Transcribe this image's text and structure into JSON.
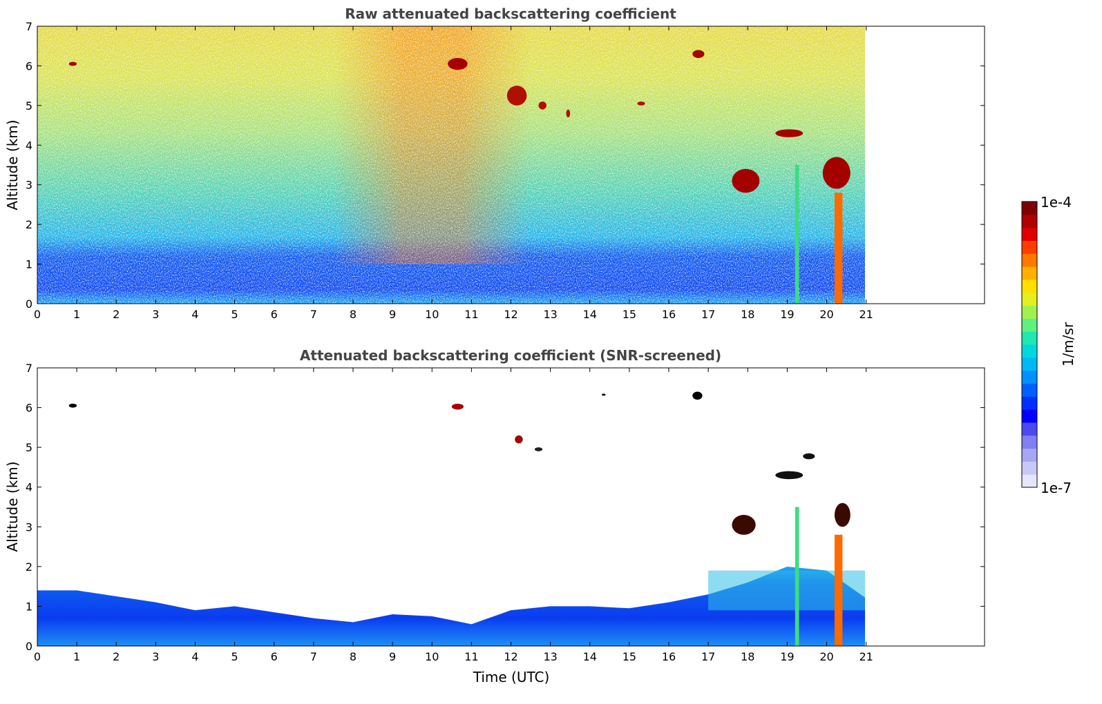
{
  "chart_data": [
    {
      "type": "heatmap",
      "title": "Raw attenuated backscattering coefficient",
      "xlabel": "",
      "ylabel": "Altitude (km)",
      "xlim": [
        0,
        24
      ],
      "ylim": [
        0,
        7
      ],
      "data_extent_x": [
        0,
        21
      ],
      "x_ticks": [
        0,
        1,
        2,
        3,
        4,
        5,
        6,
        7,
        8,
        9,
        10,
        11,
        12,
        13,
        14,
        15,
        16,
        17,
        18,
        19,
        20,
        21
      ],
      "y_ticks": [
        0,
        1,
        2,
        3,
        4,
        5,
        6,
        7
      ],
      "background_bands": [
        {
          "y": [
            0,
            0.35
          ],
          "color": "#1ba7f0"
        },
        {
          "y": [
            0.35,
            1.2
          ],
          "color": "#0a45f2"
        },
        {
          "y": [
            1.2,
            2.6
          ],
          "color": "#1fb2e8"
        },
        {
          "y": [
            2.6,
            4.4
          ],
          "color": "#4fd0b4"
        },
        {
          "y": [
            4.4,
            7.0
          ],
          "color": "#d9e24e"
        }
      ],
      "features": [
        {
          "label": "cloud",
          "x": [
            0.8,
            1.0
          ],
          "y": [
            6.0,
            6.1
          ],
          "color": "#a50000"
        },
        {
          "label": "cloud",
          "x": [
            10.4,
            10.9
          ],
          "y": [
            5.9,
            6.2
          ],
          "color": "#a50000"
        },
        {
          "label": "cloud",
          "x": [
            11.9,
            12.4
          ],
          "y": [
            5.0,
            5.5
          ],
          "color": "#b01000"
        },
        {
          "label": "cloud",
          "x": [
            12.7,
            12.9
          ],
          "y": [
            4.9,
            5.1
          ],
          "color": "#b01000"
        },
        {
          "label": "cloud",
          "x": [
            13.4,
            13.5
          ],
          "y": [
            4.7,
            4.9
          ],
          "color": "#b01000"
        },
        {
          "label": "cloud",
          "x": [
            15.2,
            15.4
          ],
          "y": [
            5.0,
            5.1
          ],
          "color": "#b01000"
        },
        {
          "label": "cloud",
          "x": [
            16.6,
            16.9
          ],
          "y": [
            6.2,
            6.4
          ],
          "color": "#a50000"
        },
        {
          "label": "cloud",
          "x": [
            18.7,
            19.4
          ],
          "y": [
            4.2,
            4.4
          ],
          "color": "#a50000"
        },
        {
          "label": "cloud",
          "x": [
            17.6,
            18.3
          ],
          "y": [
            2.8,
            3.4
          ],
          "color": "#a50000"
        },
        {
          "label": "cloud",
          "x": [
            19.9,
            20.6
          ],
          "y": [
            2.9,
            3.7
          ],
          "color": "#a50000"
        },
        {
          "label": "precip",
          "x": [
            20.2,
            20.4
          ],
          "y": [
            0,
            2.8
          ],
          "color": "#ff6a00"
        },
        {
          "label": "precip",
          "x": [
            19.2,
            19.3
          ],
          "y": [
            0,
            3.5
          ],
          "color": "#3ddc84"
        }
      ]
    },
    {
      "type": "heatmap",
      "title": "Attenuated backscattering coefficient (SNR-screened)",
      "xlabel": "Time (UTC)",
      "ylabel": "Altitude (km)",
      "xlim": [
        0,
        24
      ],
      "ylim": [
        0,
        7
      ],
      "data_extent_x": [
        0,
        21
      ],
      "x_ticks": [
        0,
        1,
        2,
        3,
        4,
        5,
        6,
        7,
        8,
        9,
        10,
        11,
        12,
        13,
        14,
        15,
        16,
        17,
        18,
        19,
        20,
        21
      ],
      "y_ticks": [
        0,
        1,
        2,
        3,
        4,
        5,
        6,
        7
      ],
      "boundary_layer_top": [
        [
          0,
          1.4
        ],
        [
          1,
          1.4
        ],
        [
          2,
          1.25
        ],
        [
          3,
          1.1
        ],
        [
          4,
          0.9
        ],
        [
          5,
          1.0
        ],
        [
          6,
          0.85
        ],
        [
          7,
          0.7
        ],
        [
          8,
          0.6
        ],
        [
          9,
          0.8
        ],
        [
          10,
          0.75
        ],
        [
          11,
          0.55
        ],
        [
          12,
          0.9
        ],
        [
          13,
          1.0
        ],
        [
          14,
          1.0
        ],
        [
          15,
          0.95
        ],
        [
          16,
          1.1
        ],
        [
          17,
          1.3
        ],
        [
          18,
          1.6
        ],
        [
          19,
          2.0
        ],
        [
          20,
          1.9
        ],
        [
          21,
          1.2
        ]
      ],
      "features": [
        {
          "label": "cloud",
          "x": [
            0.8,
            1.0
          ],
          "y": [
            6.0,
            6.1
          ],
          "color": "#000000"
        },
        {
          "label": "cloud",
          "x": [
            10.5,
            10.8
          ],
          "y": [
            5.95,
            6.1
          ],
          "color": "#a50000"
        },
        {
          "label": "cloud",
          "x": [
            12.1,
            12.3
          ],
          "y": [
            5.1,
            5.3
          ],
          "color": "#a50000"
        },
        {
          "label": "cloud",
          "x": [
            12.6,
            12.8
          ],
          "y": [
            4.9,
            5.0
          ],
          "color": "#222222"
        },
        {
          "label": "cloud",
          "x": [
            14.3,
            14.4
          ],
          "y": [
            6.3,
            6.35
          ],
          "color": "#000000"
        },
        {
          "label": "cloud",
          "x": [
            16.6,
            16.85
          ],
          "y": [
            6.2,
            6.4
          ],
          "color": "#000000"
        },
        {
          "label": "cloud",
          "x": [
            18.7,
            19.4
          ],
          "y": [
            4.2,
            4.4
          ],
          "color": "#111111"
        },
        {
          "label": "cloud",
          "x": [
            19.4,
            19.7
          ],
          "y": [
            4.7,
            4.85
          ],
          "color": "#111111"
        },
        {
          "label": "cloud",
          "x": [
            17.6,
            18.2
          ],
          "y": [
            2.8,
            3.3
          ],
          "color": "#3a0a00"
        },
        {
          "label": "cloud",
          "x": [
            20.2,
            20.6
          ],
          "y": [
            3.0,
            3.6
          ],
          "color": "#3a0a00"
        },
        {
          "label": "precip",
          "x": [
            20.2,
            20.4
          ],
          "y": [
            0,
            2.8
          ],
          "color": "#ff6a00"
        },
        {
          "label": "precip",
          "x": [
            19.2,
            19.3
          ],
          "y": [
            0,
            3.5
          ],
          "color": "#3ddc84"
        }
      ]
    }
  ],
  "colorbar": {
    "max_label": "1e-4",
    "min_label": "1e-7",
    "unit_label": "1/m/sr",
    "colors": [
      "#e6e6fa",
      "#c8c8f5",
      "#a6a6f2",
      "#8080f0",
      "#4a4af0",
      "#0000ff",
      "#0030ff",
      "#0060ff",
      "#0090ff",
      "#00b8f5",
      "#00d8e0",
      "#20e8b0",
      "#60f080",
      "#a0f050",
      "#e0f020",
      "#ffe000",
      "#ffb000",
      "#ff7800",
      "#ff3c00",
      "#e00000",
      "#b00000",
      "#800000"
    ]
  }
}
